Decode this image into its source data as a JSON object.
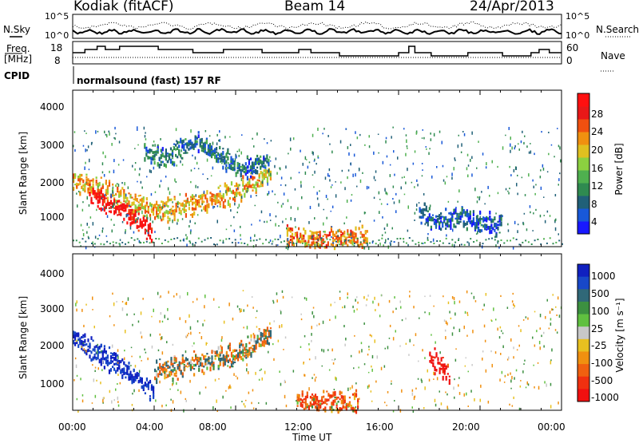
{
  "header": {
    "station": "Kodiak (fitACF)",
    "beam": "Beam 14",
    "date": "24/Apr/2013"
  },
  "noise_panel": {
    "left_label": "N.Sky",
    "right_label": "N.Search",
    "left_ticks": [
      "10^5",
      "10^0"
    ],
    "right_ticks": [
      "10^5",
      "10^0"
    ]
  },
  "freq_panel": {
    "left_label_line1": "Freq.",
    "left_label_line2": "[MHz]",
    "left_ticks": [
      "18",
      "8"
    ],
    "right_label": "Nave",
    "right_ticks": [
      "60",
      "0"
    ],
    "freq_steps_mhz": [
      [
        0.0,
        13
      ],
      [
        0.6,
        13
      ],
      [
        0.6,
        15
      ],
      [
        1.2,
        15
      ],
      [
        1.2,
        17
      ],
      [
        1.6,
        17
      ],
      [
        1.6,
        15
      ],
      [
        2.3,
        15
      ],
      [
        2.3,
        17
      ],
      [
        4.2,
        17
      ],
      [
        4.2,
        15
      ],
      [
        5.9,
        15
      ],
      [
        5.9,
        13
      ],
      [
        7.4,
        13
      ],
      [
        7.4,
        15
      ],
      [
        9.3,
        15
      ],
      [
        9.3,
        13
      ],
      [
        11.1,
        13
      ],
      [
        11.1,
        15
      ],
      [
        11.7,
        15
      ],
      [
        11.7,
        13
      ],
      [
        13.1,
        13
      ],
      [
        13.1,
        11
      ],
      [
        16.0,
        11
      ],
      [
        16.0,
        13
      ],
      [
        16.5,
        13
      ],
      [
        16.5,
        17
      ],
      [
        16.8,
        17
      ],
      [
        16.8,
        13
      ],
      [
        17.6,
        13
      ],
      [
        17.6,
        11
      ],
      [
        19.4,
        11
      ],
      [
        19.4,
        13
      ],
      [
        21.1,
        13
      ],
      [
        21.1,
        11
      ],
      [
        22.5,
        11
      ],
      [
        22.5,
        13
      ],
      [
        22.9,
        13
      ],
      [
        22.9,
        15
      ],
      [
        23.4,
        15
      ],
      [
        23.4,
        13
      ],
      [
        24.0,
        13
      ]
    ]
  },
  "cpid": {
    "label": "CPID",
    "text": "normalsound (fast) 157 RF"
  },
  "power_panel": {
    "ylabel": "Slant Range [km]",
    "yticks": [
      "4000",
      "3000",
      "2000",
      "1000"
    ],
    "colorbar_label": "Power [dB]",
    "colorbar_ticks": [
      "28",
      "24",
      "20",
      "16",
      "12",
      "8",
      "4"
    ],
    "colors": [
      "#1818ff",
      "#1858d8",
      "#206078",
      "#2f8a50",
      "#4fb04f",
      "#8cd040",
      "#e0c020",
      "#f09010",
      "#f05010",
      "#e81818",
      "#ff1010"
    ]
  },
  "velocity_panel": {
    "ylabel": "Slant Range [km]",
    "yticks": [
      "4000",
      "3000",
      "2000",
      "1000"
    ],
    "colorbar_label": "Velocity [m s⁻¹]",
    "colorbar_ticks": [
      "1000",
      "500",
      "100",
      "25",
      "-25",
      "-100",
      "-500",
      "-1000"
    ],
    "colors": [
      "#1020c0",
      "#1848c8",
      "#306878",
      "#3c9040",
      "#60c040",
      "#c8c8c8",
      "#e8c020",
      "#f09010",
      "#f06010",
      "#f03010",
      "#f01010"
    ]
  },
  "xaxis": {
    "label": "Time UT",
    "ticks": [
      "00:00",
      "04:00",
      "08:00",
      "12:00",
      "16:00",
      "20:00",
      "00:00"
    ]
  },
  "chart_data": {
    "type": "heatmap",
    "x_range_hours": [
      0,
      24
    ],
    "y_range_km": [
      180,
      4600
    ],
    "power_regions": [
      {
        "name": "dawn-band",
        "t": [
          0.0,
          1.0,
          2.0,
          3.0,
          4.0,
          5.0,
          6.0,
          7.0,
          8.0,
          9.0,
          9.7
        ],
        "r": [
          2100,
          1900,
          1700,
          1450,
          1250,
          1300,
          1450,
          1600,
          1800,
          2050,
          2400
        ],
        "db": 20
      },
      {
        "name": "early-intense",
        "t": [
          0.8,
          1.5,
          2.5,
          3.2,
          3.9
        ],
        "r": [
          1650,
          1500,
          1250,
          900,
          650
        ],
        "db": 30
      },
      {
        "name": "late-low",
        "t": [
          10.5,
          11.5,
          12.5,
          13.5,
          14.5
        ],
        "r": [
          550,
          450,
          420,
          450,
          500
        ],
        "db": 22
      },
      {
        "name": "high-range",
        "t": [
          3.5,
          4.5,
          5.5,
          6.0,
          8.2,
          9.6
        ],
        "r": [
          2900,
          2700,
          3000,
          3200,
          2400,
          2700
        ],
        "db": 8
      },
      {
        "name": "evening",
        "t": [
          17.0,
          18.0,
          19.0,
          20.0,
          21.0
        ],
        "r": [
          1200,
          900,
          1050,
          900,
          850
        ],
        "db": 6
      }
    ],
    "velocity_regions": [
      {
        "name": "dawn-fast",
        "t": [
          0.0,
          1.0,
          2.0,
          3.0,
          4.0
        ],
        "r": [
          2300,
          1900,
          1600,
          1200,
          700
        ],
        "v": 1000
      },
      {
        "name": "dusk-slow",
        "t": [
          4.0,
          6.0,
          8.0,
          9.7
        ],
        "r": [
          1300,
          1550,
          1800,
          2400
        ],
        "v": 0
      },
      {
        "name": "midday-neg",
        "t": [
          11.0,
          12.0,
          13.0,
          14.0
        ],
        "r": [
          500,
          450,
          420,
          460
        ],
        "v": -200
      },
      {
        "name": "evening-neg",
        "t": [
          17.5,
          18.0,
          18.5
        ],
        "r": [
          1700,
          1500,
          1200
        ],
        "v": -700
      }
    ]
  }
}
